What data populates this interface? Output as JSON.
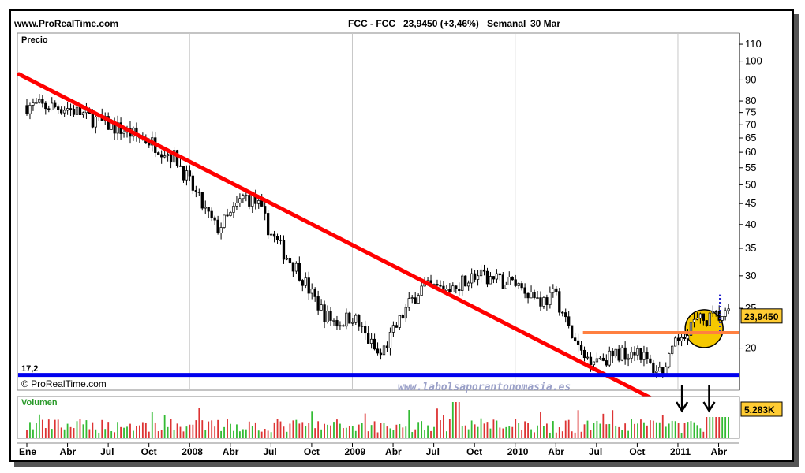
{
  "header": {
    "site": "www.ProRealTime.com",
    "symbol": "FCC - FCC",
    "quote": "23,9450 (+3,46%)",
    "period": "Semanal",
    "date": "30 Mar"
  },
  "price_panel_label": "Precio",
  "volume_panel_label": "Volumen",
  "copyright": "© ProRealTime.com",
  "watermark": "www.labolsaporantonomasia.es",
  "last_price_label": "23,9450",
  "last_volume_label": "5.283K",
  "support_label": "17,2",
  "colors": {
    "trendline": "#ff0000",
    "support": "#0000ee",
    "resistance": "#ff8040",
    "circle": "#f5c800",
    "volume_up": "#33bb33",
    "volume_down": "#dd3333"
  },
  "chart_data": [
    {
      "type": "candlestick",
      "panel": "price",
      "scale": "log",
      "ylim": [
        16,
        115
      ],
      "y_ticks": [
        "110",
        "100",
        "90",
        "80",
        "75",
        "70",
        "65",
        "60",
        "55",
        "50",
        "45",
        "40",
        "35",
        "30",
        "25",
        "20"
      ],
      "x_ticks": [
        "Ene",
        "Abr",
        "Jul",
        "Oct",
        "2008",
        "Abr",
        "Jul",
        "Oct",
        "2009",
        "Abr",
        "Jul",
        "Oct",
        "2010",
        "Abr",
        "Jul",
        "Oct",
        "2011",
        "Abr"
      ],
      "x_range": [
        "2007-01",
        "2011-04"
      ],
      "close_path": [
        [
          "2007-01",
          78
        ],
        [
          "2007-04",
          77
        ],
        [
          "2007-06",
          72
        ],
        [
          "2007-08",
          68
        ],
        [
          "2007-10",
          64
        ],
        [
          "2007-12",
          58
        ],
        [
          "2008-02",
          44
        ],
        [
          "2008-03",
          39
        ],
        [
          "2008-04",
          42
        ],
        [
          "2008-05",
          47
        ],
        [
          "2008-06",
          45
        ],
        [
          "2008-07",
          38
        ],
        [
          "2008-08",
          34
        ],
        [
          "2008-09",
          31
        ],
        [
          "2008-10",
          27
        ],
        [
          "2008-11",
          24
        ],
        [
          "2008-12",
          23
        ],
        [
          "2009-01",
          24
        ],
        [
          "2009-03",
          19
        ],
        [
          "2009-05",
          25
        ],
        [
          "2009-06",
          28
        ],
        [
          "2009-08",
          28
        ],
        [
          "2009-10",
          30
        ],
        [
          "2009-12",
          29
        ],
        [
          "2010-01",
          29
        ],
        [
          "2010-03",
          26
        ],
        [
          "2010-04",
          27
        ],
        [
          "2010-05",
          22
        ],
        [
          "2010-06",
          19
        ],
        [
          "2010-08",
          19
        ],
        [
          "2010-10",
          20
        ],
        [
          "2010-11",
          18
        ],
        [
          "2010-12",
          17.5
        ],
        [
          "2011-01",
          21
        ],
        [
          "2011-02",
          23
        ],
        [
          "2011-03",
          23.5
        ],
        [
          "2011-04",
          23.9
        ]
      ],
      "last_close": 23.945,
      "change_pct": 3.46,
      "trendline": {
        "from": [
          "2007-01",
          93
        ],
        "to": [
          "2010-12",
          15.6
        ]
      },
      "support_level": 17.2,
      "resistance_level": {
        "value": 21.8,
        "from": "2010-06",
        "to": "2011-04"
      },
      "highlight_circle": {
        "center": [
          "2011-02",
          22.3
        ]
      },
      "dotted_projection": {
        "at": "2011-04",
        "from": 22,
        "to": 27
      }
    },
    {
      "type": "bar",
      "panel": "volume",
      "last_value_k": 5283,
      "x_range": [
        "2007-01",
        "2011-04"
      ],
      "arrows_at": [
        "2011-01",
        "2011-03"
      ]
    }
  ]
}
